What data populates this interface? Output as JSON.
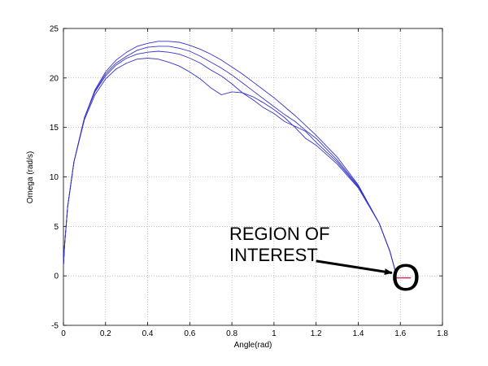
{
  "chart_data": {
    "type": "line",
    "title": "",
    "xlabel": "Angle(rad)",
    "ylabel": "Omega (rad/s)",
    "xlim": [
      0,
      1.8
    ],
    "ylim": [
      -5,
      25
    ],
    "xticks": [
      0,
      0.2,
      0.4,
      0.6,
      0.8,
      1,
      1.2,
      1.4,
      1.6,
      1.8
    ],
    "yticks": [
      -5,
      0,
      5,
      10,
      15,
      20,
      25
    ],
    "xtick_labels": [
      "0",
      "0.2",
      "0.4",
      "0.6",
      "0.8",
      "1",
      "1.2",
      "1.4",
      "1.6",
      "1.8"
    ],
    "ytick_labels": [
      "-5",
      "0",
      "5",
      "10",
      "15",
      "20",
      "25"
    ],
    "grid": true,
    "legend": "none",
    "line_color": "#3333cc",
    "marker_color": "#cc3366",
    "series": [
      {
        "x": [
          0,
          0.005,
          0.02,
          0.05,
          0.1,
          0.15,
          0.2,
          0.25,
          0.3,
          0.35,
          0.4,
          0.45,
          0.5,
          0.55,
          0.6,
          0.65,
          0.7,
          0.75,
          0.8,
          0.85,
          0.9,
          0.95,
          1.0,
          1.05,
          1.1,
          1.15,
          1.2,
          1.3,
          1.4,
          1.5,
          1.55,
          1.58
        ],
        "y": [
          1,
          3,
          7,
          11.5,
          16,
          18.8,
          20.6,
          21.8,
          22.6,
          23.2,
          23.5,
          23.7,
          23.7,
          23.6,
          23.3,
          22.9,
          22.4,
          21.8,
          21.1,
          20.4,
          19.6,
          18.8,
          18.0,
          17.1,
          16.2,
          15.2,
          14.2,
          12.0,
          9.2,
          5.3,
          2.5,
          0.2
        ]
      },
      {
        "x": [
          0,
          0.005,
          0.02,
          0.05,
          0.1,
          0.15,
          0.2,
          0.25,
          0.3,
          0.35,
          0.4,
          0.45,
          0.5,
          0.55,
          0.6,
          0.65,
          0.7,
          0.75,
          0.8,
          0.85,
          0.9,
          0.95,
          1.0,
          1.05,
          1.1,
          1.15,
          1.2,
          1.3,
          1.4,
          1.5,
          1.55,
          1.58
        ],
        "y": [
          1,
          3,
          7,
          11.5,
          16,
          18.7,
          20.4,
          21.5,
          22.2,
          22.8,
          23.1,
          23.2,
          23.2,
          23.0,
          22.7,
          22.2,
          21.6,
          21.0,
          20.3,
          19.5,
          18.7,
          17.9,
          17.1,
          16.3,
          15.6,
          14.7,
          13.9,
          11.7,
          9.1,
          5.3,
          2.5,
          0.2
        ]
      },
      {
        "x": [
          0,
          0.005,
          0.02,
          0.05,
          0.1,
          0.15,
          0.2,
          0.25,
          0.3,
          0.35,
          0.4,
          0.45,
          0.5,
          0.55,
          0.6,
          0.65,
          0.7,
          0.75,
          0.8,
          0.85,
          0.9,
          0.95,
          1.0,
          1.05,
          1.1,
          1.15,
          1.2,
          1.3,
          1.4,
          1.5,
          1.55,
          1.58
        ],
        "y": [
          1,
          3,
          7,
          11.5,
          16,
          18.6,
          20.2,
          21.3,
          22.0,
          22.4,
          22.6,
          22.7,
          22.6,
          22.4,
          22.0,
          21.5,
          20.8,
          20.2,
          19.4,
          18.5,
          17.8,
          17.0,
          16.4,
          15.6,
          15.1,
          14.6,
          13.5,
          11.5,
          9.0,
          5.3,
          2.5,
          0.2
        ]
      },
      {
        "x": [
          0,
          0.005,
          0.02,
          0.05,
          0.1,
          0.15,
          0.2,
          0.25,
          0.3,
          0.35,
          0.4,
          0.45,
          0.5,
          0.55,
          0.6,
          0.65,
          0.7,
          0.75,
          0.8,
          0.85,
          0.9,
          0.95,
          1.0,
          1.05,
          1.1,
          1.15,
          1.2,
          1.3,
          1.4,
          1.5,
          1.55,
          1.58
        ],
        "y": [
          1,
          3,
          7,
          11.5,
          15.8,
          18.3,
          19.9,
          20.9,
          21.5,
          21.9,
          22.0,
          21.9,
          21.6,
          21.2,
          20.6,
          19.9,
          19.0,
          18.3,
          18.6,
          18.5,
          18.1,
          17.5,
          16.8,
          16.0,
          15.0,
          13.9,
          13.2,
          11.3,
          8.9,
          5.3,
          2.5,
          0.2
        ]
      }
    ],
    "region_marker": {
      "x": [
        1.57,
        1.65
      ],
      "y": [
        -0.2,
        -0.2
      ]
    },
    "annotation": {
      "text_lines": [
        "REGION OF",
        "INTEREST"
      ],
      "circle_letter": "O",
      "arrow_from": [
        1.2,
        1.5
      ],
      "arrow_to": [
        1.56,
        0.3
      ]
    }
  }
}
